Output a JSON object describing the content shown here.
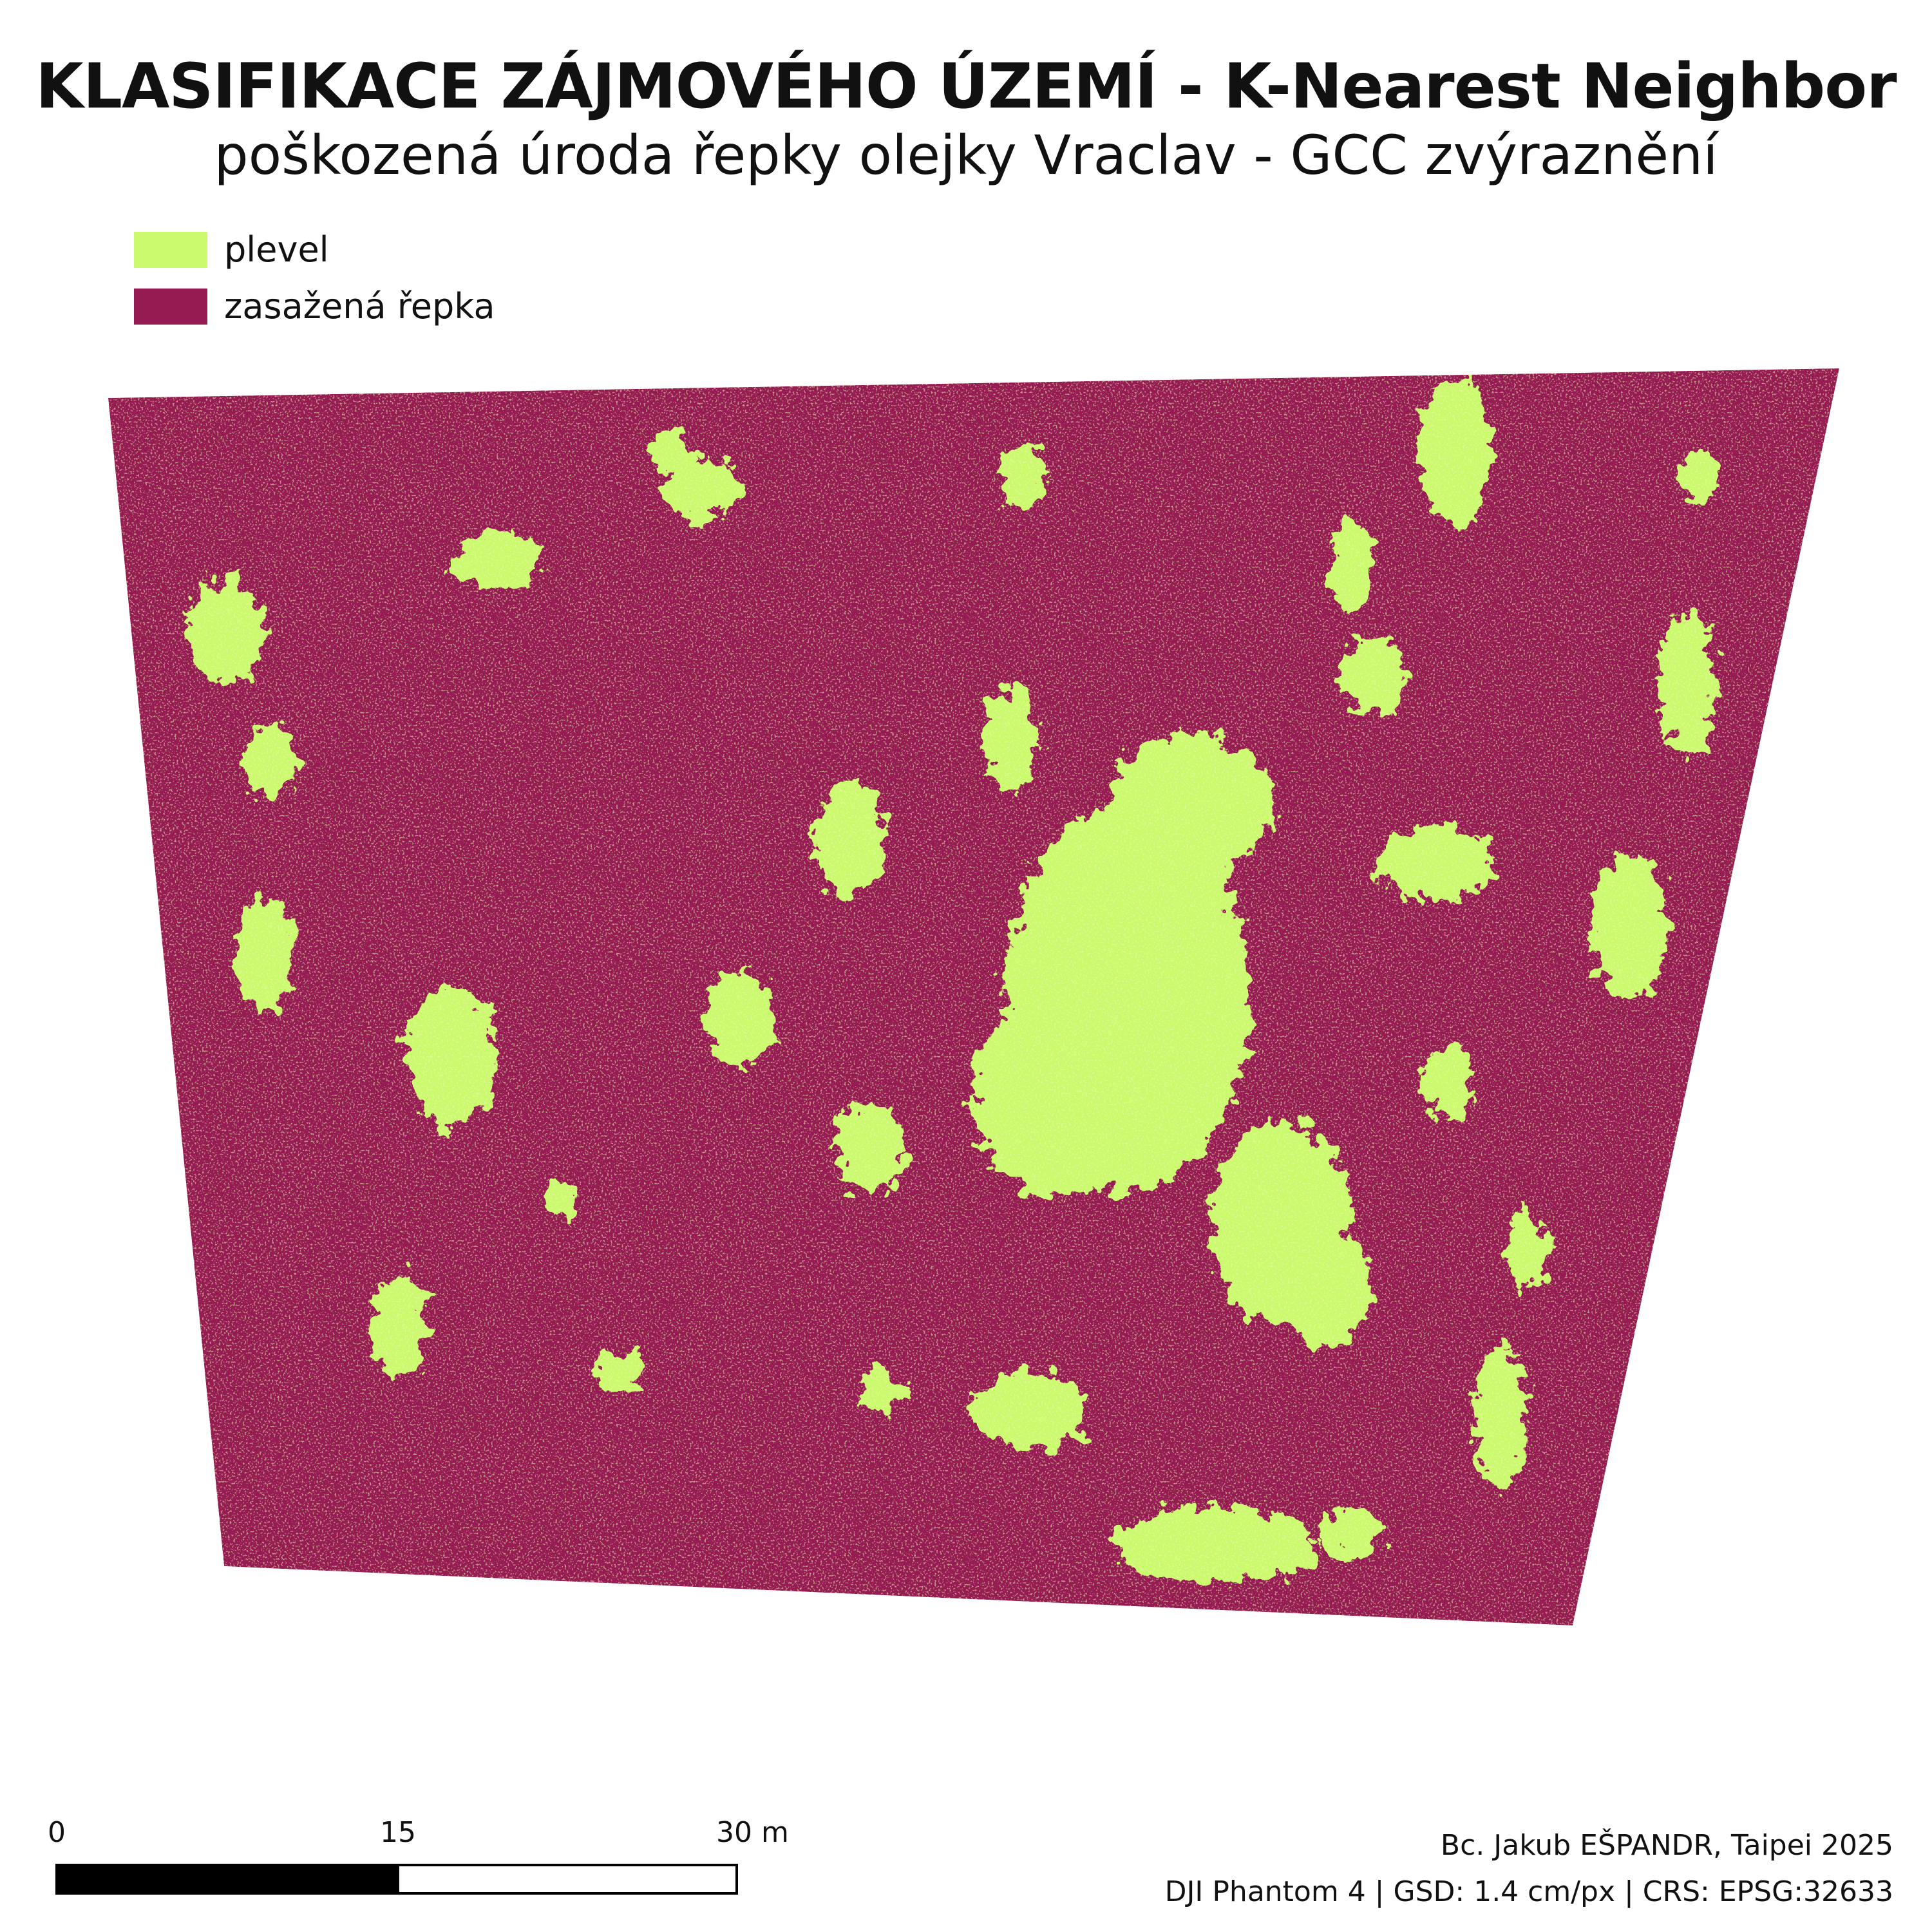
{
  "title": "KLASIFIKACE ZÁJMOVÉHO ÚZEMÍ - K-Nearest Neighbor",
  "subtitle": "poškozená úroda řepky olejky Vraclav - GCC zvýraznění",
  "legend": [
    {
      "label": "plevel",
      "color": "#ccfa6e"
    },
    {
      "label": "zasažená řepka",
      "color": "#951b52"
    }
  ],
  "scalebar": {
    "labels": [
      "0",
      "15",
      "30 m"
    ]
  },
  "credits": {
    "author": "Bc. Jakub EŠPANDR, Taipei 2025",
    "meta": "DJI Phantom 4 | GSD: 1.4 cm/px | CRS: EPSG:32633"
  }
}
